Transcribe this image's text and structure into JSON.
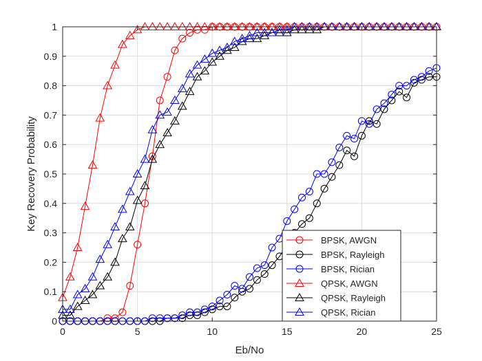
{
  "chart_data": {
    "type": "line",
    "xlabel": "Eb/No",
    "ylabel": "Key Recovery Probability",
    "xlim": [
      0,
      25
    ],
    "ylim": [
      0,
      1
    ],
    "xticks": [
      0,
      5,
      10,
      15,
      20,
      25
    ],
    "yticks": [
      0,
      0.1,
      0.2,
      0.3,
      0.4,
      0.5,
      0.6,
      0.7,
      0.8,
      0.9,
      1
    ],
    "grid": true,
    "legend_position": "bottom-right",
    "x": [
      0,
      0.5,
      1,
      1.5,
      2,
      2.5,
      3,
      3.5,
      4,
      4.5,
      5,
      5.5,
      6,
      6.5,
      7,
      7.5,
      8,
      8.5,
      9,
      9.5,
      10,
      10.5,
      11,
      11.5,
      12,
      12.5,
      13,
      13.5,
      14,
      14.5,
      15,
      15.5,
      16,
      16.5,
      17,
      17.5,
      18,
      18.5,
      19,
      19.5,
      20,
      20.5,
      21,
      21.5,
      22,
      22.5,
      23,
      23.5,
      24,
      24.5,
      25
    ],
    "series": [
      {
        "name": "BPSK, AWGN",
        "color": "#ff0000",
        "marker": "circle",
        "values": [
          0,
          0,
          0,
          0,
          0,
          0,
          0.01,
          0.01,
          0.03,
          0.12,
          0.26,
          0.4,
          0.56,
          0.75,
          0.83,
          0.92,
          0.96,
          0.98,
          0.99,
          0.99,
          1,
          1,
          1,
          1,
          1,
          1,
          1,
          1,
          1,
          1,
          1,
          1,
          1,
          1,
          1,
          1,
          1,
          1,
          1,
          1,
          1,
          1,
          1,
          1,
          1,
          1,
          1,
          1,
          1,
          1,
          1
        ]
      },
      {
        "name": "BPSK, Rayleigh",
        "color": "#000000",
        "marker": "circle",
        "values": [
          0,
          0,
          0,
          0,
          0,
          0,
          0,
          0,
          0,
          0,
          0,
          0,
          0,
          0,
          0.01,
          0.01,
          0.01,
          0.02,
          0.02,
          0.03,
          0.04,
          0.05,
          0.05,
          0.08,
          0.1,
          0.11,
          0.14,
          0.16,
          0.19,
          0.22,
          0.26,
          0.3,
          0.33,
          0.35,
          0.4,
          0.45,
          0.49,
          0.53,
          0.58,
          0.56,
          0.63,
          0.68,
          0.67,
          0.72,
          0.75,
          0.78,
          0.76,
          0.81,
          0.82,
          0.83,
          0.83
        ]
      },
      {
        "name": "BPSK, Rician",
        "color": "#0000ff",
        "marker": "circle",
        "values": [
          0,
          0,
          0,
          0,
          0,
          0,
          0,
          0,
          0,
          0,
          0,
          0,
          0.01,
          0.01,
          0.01,
          0.01,
          0.02,
          0.03,
          0.03,
          0.04,
          0.05,
          0.07,
          0.09,
          0.12,
          0.11,
          0.15,
          0.18,
          0.19,
          0.25,
          0.28,
          0.34,
          0.38,
          0.42,
          0.44,
          0.5,
          0.5,
          0.54,
          0.59,
          0.63,
          0.62,
          0.68,
          0.67,
          0.72,
          0.74,
          0.77,
          0.8,
          0.8,
          0.82,
          0.83,
          0.85,
          0.86
        ]
      },
      {
        "name": "QPSK, AWGN",
        "color": "#ff0000",
        "marker": "triangle",
        "values": [
          0.08,
          0.15,
          0.25,
          0.39,
          0.53,
          0.69,
          0.8,
          0.87,
          0.94,
          0.97,
          0.99,
          1,
          1,
          1,
          1,
          1,
          1,
          1,
          1,
          1,
          1,
          1,
          1,
          1,
          1,
          1,
          1,
          1,
          1,
          1,
          1,
          1,
          1,
          1,
          1,
          1,
          1,
          1,
          1,
          1,
          1,
          1,
          1,
          1,
          1,
          1,
          1,
          1,
          1,
          1,
          1
        ]
      },
      {
        "name": "QPSK, Rayleigh",
        "color": "#000000",
        "marker": "triangle",
        "values": [
          0.02,
          0.02,
          0.05,
          0.07,
          0.09,
          0.12,
          0.15,
          0.2,
          0.28,
          0.32,
          0.41,
          0.46,
          0.55,
          0.6,
          0.64,
          0.68,
          0.73,
          0.78,
          0.83,
          0.85,
          0.88,
          0.9,
          0.92,
          0.93,
          0.95,
          0.96,
          0.96,
          0.97,
          0.98,
          0.98,
          0.98,
          0.99,
          0.99,
          0.99,
          0.99,
          1,
          1,
          1,
          1,
          1,
          1,
          1,
          1,
          1,
          1,
          1,
          1,
          1,
          1,
          1,
          1
        ]
      },
      {
        "name": "QPSK, Rician",
        "color": "#0000ff",
        "marker": "triangle",
        "values": [
          0.04,
          0.04,
          0.09,
          0.11,
          0.15,
          0.21,
          0.26,
          0.32,
          0.38,
          0.44,
          0.5,
          0.55,
          0.65,
          0.7,
          0.71,
          0.75,
          0.79,
          0.84,
          0.87,
          0.89,
          0.91,
          0.92,
          0.93,
          0.95,
          0.96,
          0.97,
          0.98,
          0.98,
          0.98,
          0.99,
          0.99,
          1,
          1,
          1,
          1,
          1,
          1,
          1,
          1,
          1,
          1,
          1,
          1,
          1,
          1,
          1,
          1,
          1,
          1,
          1,
          1
        ]
      }
    ]
  }
}
